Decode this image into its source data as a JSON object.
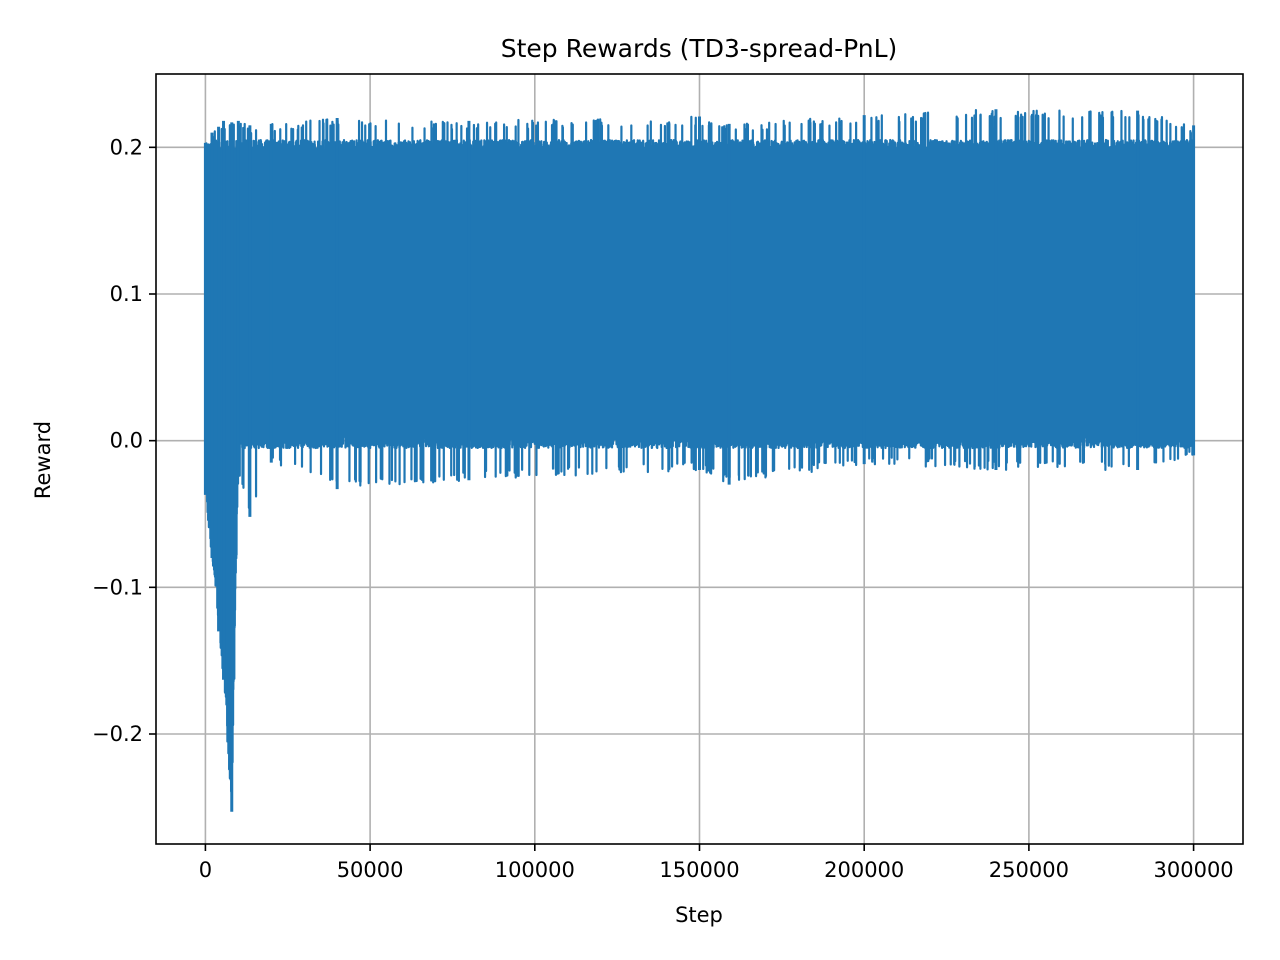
{
  "chart_data": {
    "type": "line",
    "title": "Step Rewards (TD3-spread-PnL)",
    "xlabel": "Step",
    "ylabel": "Reward",
    "xlim": [
      -15000,
      315000
    ],
    "ylim": [
      -0.275,
      0.25
    ],
    "xticks": [
      0,
      50000,
      100000,
      150000,
      200000,
      250000,
      300000
    ],
    "xtick_labels": [
      "0",
      "50000",
      "100000",
      "150000",
      "200000",
      "250000",
      "300000"
    ],
    "yticks": [
      -0.2,
      -0.1,
      0.0,
      0.1,
      0.2
    ],
    "ytick_labels": [
      "−0.2",
      "−0.1",
      "0.0",
      "0.1",
      "0.2"
    ],
    "grid": true,
    "series": [
      {
        "color": "#1f77b4",
        "description_points": [
          {
            "x": 0,
            "y_min": -0.037,
            "y_max": 0.203
          },
          {
            "x": 2000,
            "y_min": -0.08,
            "y_max": 0.21
          },
          {
            "x": 4000,
            "y_min": -0.13,
            "y_max": 0.214
          },
          {
            "x": 5500,
            "y_min": -0.163,
            "y_max": 0.218
          },
          {
            "x": 8000,
            "y_min": -0.253,
            "y_max": 0.217
          },
          {
            "x": 10000,
            "y_min": -0.02,
            "y_max": 0.218
          },
          {
            "x": 13500,
            "y_min": -0.052,
            "y_max": 0.215
          },
          {
            "x": 20000,
            "y_min": -0.015,
            "y_max": 0.216
          },
          {
            "x": 40000,
            "y_min": -0.033,
            "y_max": 0.22
          },
          {
            "x": 80000,
            "y_min": -0.027,
            "y_max": 0.218
          },
          {
            "x": 150000,
            "y_min": -0.02,
            "y_max": 0.221
          },
          {
            "x": 159000,
            "y_min": -0.03,
            "y_max": 0.216
          },
          {
            "x": 200000,
            "y_min": -0.016,
            "y_max": 0.222
          },
          {
            "x": 240000,
            "y_min": -0.02,
            "y_max": 0.226
          },
          {
            "x": 283000,
            "y_min": -0.02,
            "y_max": 0.225
          },
          {
            "x": 300000,
            "y_min": -0.01,
            "y_max": 0.215
          }
        ]
      }
    ]
  }
}
